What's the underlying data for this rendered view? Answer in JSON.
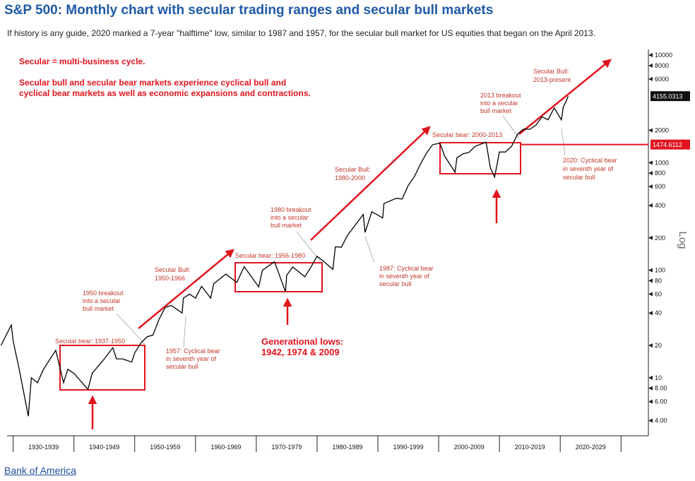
{
  "chart_data": {
    "type": "line",
    "title": "S&P 500: Monthly chart with secular trading ranges and secular bull markets",
    "subtitle": "If history is any guide, 2020 marked a 7-year \"halftime\" low, similar to 1987 and 1957, for the secular bull market for US equities that began on the April 2013.",
    "source": "Bank of America",
    "y_axis_label": "Log",
    "log_scale": true,
    "color": "#000000",
    "x": [
      1928,
      1929.7,
      1930,
      1931,
      1932.5,
      1933,
      1934,
      1935,
      1937,
      1938.3,
      1939,
      1940,
      1942.3,
      1943,
      1945,
      1946.4,
      1947,
      1948,
      1949.5,
      1950,
      1951,
      1952,
      1953,
      1954,
      1955,
      1956,
      1957.8,
      1958,
      1959,
      1960,
      1961,
      1962.5,
      1963,
      1965,
      1966.8,
      1968,
      1970.4,
      1971,
      1973,
      1974.8,
      1975,
      1976,
      1978,
      1979,
      1980,
      1981,
      1982.6,
      1983,
      1984,
      1985,
      1987.6,
      1987.9,
      1989,
      1990.8,
      1991,
      1993,
      1994,
      1995,
      1996,
      1997,
      1998,
      1999,
      2000.2,
      2001,
      2002.7,
      2003,
      2004,
      2005,
      2006,
      2007.8,
      2008.5,
      2009.2,
      2010,
      2011,
      2012,
      2013,
      2014,
      2015,
      2016,
      2017,
      2018,
      2019,
      2020.2,
      2020.5,
      2021,
      2021.3
    ],
    "values": [
      20,
      31,
      22,
      12,
      4.4,
      10,
      9,
      12,
      18,
      9,
      12,
      11,
      7.8,
      11,
      15,
      19,
      15,
      15,
      14,
      17,
      21,
      24,
      25,
      35,
      45,
      47,
      40,
      55,
      60,
      55,
      71,
      55,
      75,
      92,
      77,
      108,
      70,
      100,
      120,
      63,
      90,
      107,
      87,
      107,
      135,
      122,
      102,
      165,
      164,
      211,
      330,
      225,
      350,
      306,
      417,
      466,
      459,
      615,
      740,
      970,
      1229,
      1469,
      1520,
      1148,
      815,
      1111,
      1211,
      1248,
      1418,
      1550,
      900,
      735,
      1257,
      1257,
      1426,
      1848,
      2058,
      2043,
      2238,
      2673,
      2506,
      3230,
      2500,
      3300,
      3756,
      4155
    ],
    "xlim": [
      1929,
      2034.5
    ],
    "xticks": [
      {
        "value": 1935,
        "label": "1930-1939"
      },
      {
        "value": 1945,
        "label": "1940-1949"
      },
      {
        "value": 1955,
        "label": "1950-1959"
      },
      {
        "value": 1965,
        "label": "1960-1969"
      },
      {
        "value": 1975,
        "label": "1970-1979"
      },
      {
        "value": 1985,
        "label": "1980-1989"
      },
      {
        "value": 1995,
        "label": "1990-1999"
      },
      {
        "value": 2005,
        "label": "2000-2009"
      },
      {
        "value": 2015,
        "label": "2010-2019"
      },
      {
        "value": 2025,
        "label": "2020-2029"
      }
    ],
    "ylim": [
      3,
      12000
    ],
    "yticks": [
      {
        "value": 4,
        "label": "4.00"
      },
      {
        "value": 6,
        "label": "6.00"
      },
      {
        "value": 8,
        "label": "8.00"
      },
      10,
      20,
      40,
      60,
      80,
      100,
      200,
      400,
      600,
      800,
      1000,
      2000,
      6000,
      8000,
      10000
    ],
    "last_value": 4155.0313,
    "reference_line": 1474.6112,
    "annotations": [
      [
        "Secular = multi-business cycle."
      ],
      [
        "Secular bull and secular bear markets experience cyclical bull and",
        "cyclical bear markets as well as economic expansions and contractions."
      ],
      [
        "Secular Bull:",
        "2013-present"
      ],
      [
        "2013 breakout",
        "into a secular",
        "bull market"
      ],
      [
        "Secular bear: 2000-2013"
      ],
      [
        "2020: Cyclical bear",
        "in seventh year of",
        "secular bull"
      ],
      [
        "Secular Bull:",
        "1980-2000"
      ],
      [
        "1980 breakout",
        "into a secular",
        "bull market"
      ],
      [
        "Secular bear: 1956-1980"
      ],
      [
        "1987: Cyclical bear",
        "in seventh year of",
        "secular bull"
      ],
      [
        "Secular Bull:",
        "1950-1966"
      ],
      [
        "1950 breakout",
        "into a secular",
        "bull market"
      ],
      [
        "Generational lows:",
        "1942, 1974 & 2009"
      ],
      [
        "Secular bear: 1937-1950"
      ],
      [
        "1957: Cyclical bear",
        "in seventh year of",
        "secular bull"
      ]
    ]
  }
}
